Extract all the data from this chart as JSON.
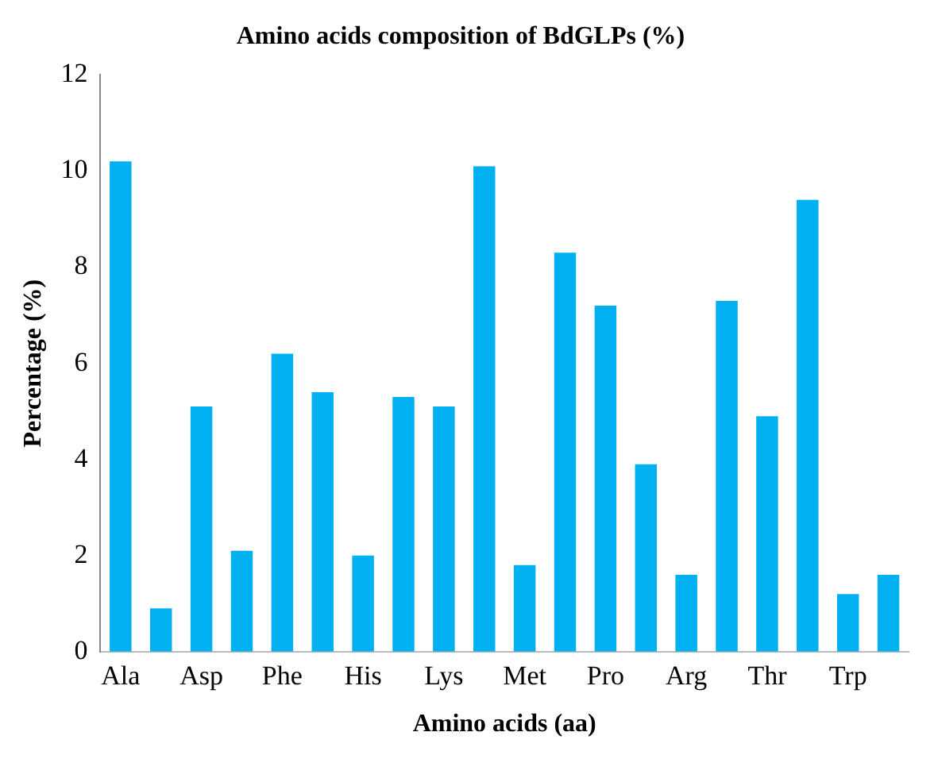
{
  "chart_data": {
    "type": "bar",
    "title": "Amino acids composition of BdGLPs (%)",
    "xlabel": "Amino acids (aa)",
    "ylabel": "Percentage (%)",
    "categories": [
      "Ala",
      null,
      "Asp",
      null,
      "Phe",
      null,
      "His",
      null,
      "Lys",
      null,
      "Met",
      null,
      "Pro",
      null,
      "Arg",
      null,
      "Thr",
      null,
      "Trp",
      null
    ],
    "values": [
      10.2,
      0.9,
      5.1,
      2.1,
      6.2,
      5.4,
      2.0,
      5.3,
      5.1,
      10.1,
      1.8,
      8.3,
      7.2,
      3.9,
      1.6,
      7.3,
      4.9,
      9.4,
      1.2,
      1.6
    ],
    "color": "#00b0f0",
    "ylim": [
      0,
      12
    ],
    "yticks": [
      0,
      2,
      4,
      6,
      8,
      10,
      12
    ],
    "grid": false,
    "legend": false
  }
}
